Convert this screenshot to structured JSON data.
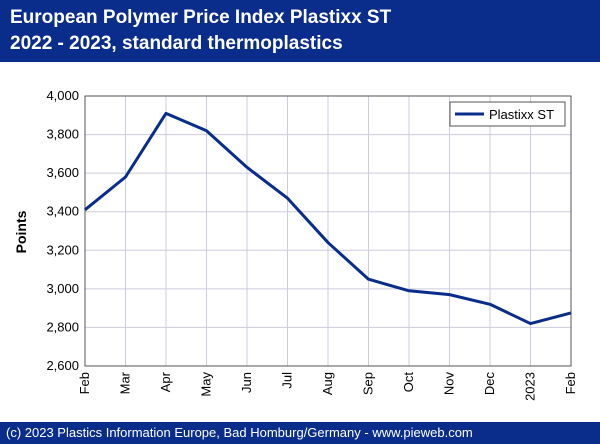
{
  "header": {
    "title_line1": "European Polymer Price Index Plastixx ST",
    "title_line2": "2022 - 2023, standard thermoplastics"
  },
  "footer": {
    "copyright": "(c) 2023 Plastics Information Europe, Bad Homburg/Germany - www.pieweb.com"
  },
  "colors": {
    "banner": "#0a2d8c",
    "series": "#0a2d8c",
    "grid": "#ccccdd"
  },
  "chart_data": {
    "type": "line",
    "title": "European Polymer Price Index Plastixx ST 2022 - 2023, standard thermoplastics",
    "xlabel": "",
    "ylabel": "Points",
    "categories": [
      "Feb",
      "Mar",
      "Apr",
      "May",
      "Jun",
      "Jul",
      "Aug",
      "Sep",
      "Oct",
      "Nov",
      "Dec",
      "2023",
      "Feb"
    ],
    "series": [
      {
        "name": "Plastixx ST",
        "values": [
          3410,
          3580,
          3910,
          3820,
          3630,
          3470,
          3240,
          3050,
          2990,
          2970,
          2920,
          2820,
          2875
        ]
      }
    ],
    "ylim": [
      2600,
      4000
    ],
    "yticks": [
      2600,
      2800,
      3000,
      3200,
      3400,
      3600,
      3800,
      4000
    ],
    "ytick_labels": [
      "2,600",
      "2,800",
      "3,000",
      "3,200",
      "3,400",
      "3,600",
      "3,800",
      "4,000"
    ],
    "grid": true,
    "legend": "top-right"
  }
}
